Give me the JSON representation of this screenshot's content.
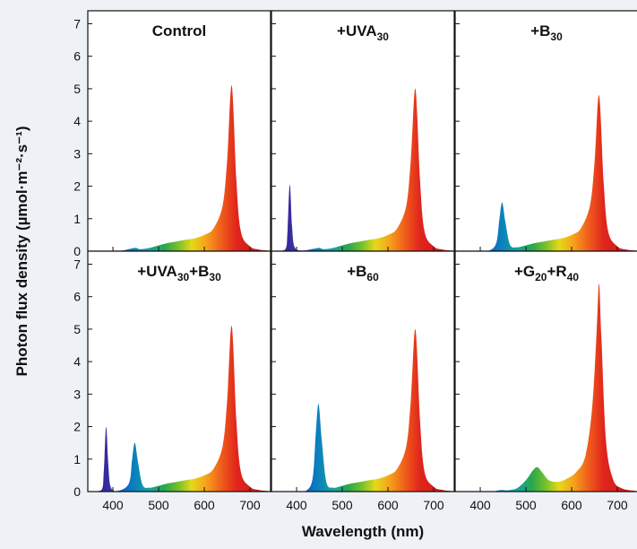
{
  "chart_data": {
    "type": "area",
    "xlabel": "Wavelength (nm)",
    "ylabel": "Photon flux density (µmol·m⁻²·s⁻¹)",
    "xlim": [
      345,
      745
    ],
    "ylim": [
      0,
      7.4
    ],
    "xticks": [
      400,
      500,
      600,
      700
    ],
    "yticks": [
      0,
      1,
      2,
      3,
      4,
      5,
      6,
      7
    ],
    "grid": false,
    "layout": "2 rows x 3 columns, shared axes",
    "panels": [
      {
        "title": [
          {
            "text": "Control"
          }
        ],
        "peaks": {
          "uva_385": 0,
          "blue_448": 0.1,
          "green_525": 0,
          "red_660": 5.1
        },
        "x": [
          350,
          380,
          400,
          420,
          440,
          450,
          460,
          480,
          500,
          520,
          540,
          560,
          580,
          600,
          620,
          640,
          650,
          660,
          670,
          680,
          700,
          720,
          740
        ],
        "y": [
          0,
          0,
          0,
          0.02,
          0.08,
          0.1,
          0.06,
          0.1,
          0.18,
          0.25,
          0.3,
          0.35,
          0.4,
          0.5,
          0.7,
          1.4,
          2.8,
          5.1,
          2.2,
          0.6,
          0.15,
          0.05,
          0.02
        ]
      },
      {
        "title": [
          {
            "text": "+UVA"
          },
          {
            "text": "30",
            "sub": true
          }
        ],
        "peaks": {
          "uva_385": 2.05,
          "blue_448": 0.1,
          "green_525": 0,
          "red_660": 5.0
        },
        "x": [
          350,
          375,
          380,
          385,
          390,
          395,
          410,
          440,
          450,
          460,
          480,
          500,
          520,
          540,
          560,
          580,
          600,
          620,
          640,
          650,
          660,
          670,
          680,
          700,
          720,
          740
        ],
        "y": [
          0,
          0.05,
          0.6,
          2.05,
          0.8,
          0.15,
          0.02,
          0.08,
          0.1,
          0.06,
          0.1,
          0.18,
          0.25,
          0.3,
          0.35,
          0.4,
          0.5,
          0.7,
          1.4,
          2.8,
          5.0,
          2.2,
          0.6,
          0.15,
          0.05,
          0.02
        ]
      },
      {
        "title": [
          {
            "text": "+B"
          },
          {
            "text": "30",
            "sub": true
          }
        ],
        "peaks": {
          "uva_385": 0,
          "blue_448": 1.5,
          "green_525": 0,
          "red_660": 4.8
        },
        "x": [
          350,
          400,
          420,
          435,
          442,
          448,
          455,
          465,
          480,
          500,
          520,
          540,
          560,
          580,
          600,
          620,
          640,
          650,
          660,
          670,
          680,
          700,
          720,
          740
        ],
        "y": [
          0,
          0,
          0.02,
          0.25,
          1.0,
          1.5,
          0.9,
          0.2,
          0.12,
          0.18,
          0.25,
          0.3,
          0.35,
          0.4,
          0.5,
          0.7,
          1.4,
          2.7,
          4.8,
          2.1,
          0.6,
          0.15,
          0.05,
          0.02
        ]
      },
      {
        "title": [
          {
            "text": "+UVA"
          },
          {
            "text": "30",
            "sub": true
          },
          {
            "text": "+B"
          },
          {
            "text": "30",
            "sub": true
          }
        ],
        "peaks": {
          "uva_385": 2.0,
          "blue_448": 1.5,
          "green_525": 0,
          "red_660": 5.1
        },
        "x": [
          350,
          375,
          380,
          385,
          390,
          395,
          410,
          435,
          442,
          448,
          455,
          465,
          480,
          500,
          520,
          540,
          560,
          580,
          600,
          620,
          640,
          650,
          660,
          670,
          680,
          700,
          720,
          740
        ],
        "y": [
          0,
          0.05,
          0.6,
          2.0,
          0.8,
          0.15,
          0.02,
          0.25,
          1.0,
          1.5,
          0.9,
          0.2,
          0.12,
          0.18,
          0.25,
          0.3,
          0.35,
          0.4,
          0.5,
          0.7,
          1.4,
          2.8,
          5.1,
          2.2,
          0.6,
          0.15,
          0.05,
          0.02
        ]
      },
      {
        "title": [
          {
            "text": "+B"
          },
          {
            "text": "60",
            "sub": true
          }
        ],
        "peaks": {
          "uva_385": 0,
          "blue_448": 2.7,
          "green_525": 0,
          "red_660": 5.0
        },
        "x": [
          350,
          400,
          420,
          435,
          442,
          448,
          455,
          465,
          480,
          500,
          520,
          540,
          560,
          580,
          600,
          620,
          640,
          650,
          660,
          670,
          680,
          700,
          720,
          740
        ],
        "y": [
          0,
          0,
          0.02,
          0.4,
          1.8,
          2.7,
          1.6,
          0.3,
          0.12,
          0.18,
          0.25,
          0.3,
          0.35,
          0.4,
          0.5,
          0.7,
          1.4,
          2.8,
          5.0,
          2.2,
          0.6,
          0.15,
          0.05,
          0.02
        ]
      },
      {
        "title": [
          {
            "text": "+G"
          },
          {
            "text": "20",
            "sub": true
          },
          {
            "text": "+R"
          },
          {
            "text": "40",
            "sub": true
          }
        ],
        "peaks": {
          "uva_385": 0,
          "blue_448": 0.05,
          "green_525": 0.75,
          "red_660": 6.4
        },
        "x": [
          350,
          420,
          440,
          450,
          460,
          480,
          500,
          515,
          525,
          535,
          550,
          570,
          590,
          610,
          630,
          645,
          655,
          660,
          665,
          675,
          690,
          710,
          740
        ],
        "y": [
          0,
          0,
          0.04,
          0.05,
          0.04,
          0.1,
          0.35,
          0.65,
          0.75,
          0.6,
          0.35,
          0.3,
          0.4,
          0.6,
          1.1,
          2.6,
          5.0,
          6.4,
          4.8,
          1.6,
          0.4,
          0.1,
          0.02
        ]
      }
    ]
  }
}
